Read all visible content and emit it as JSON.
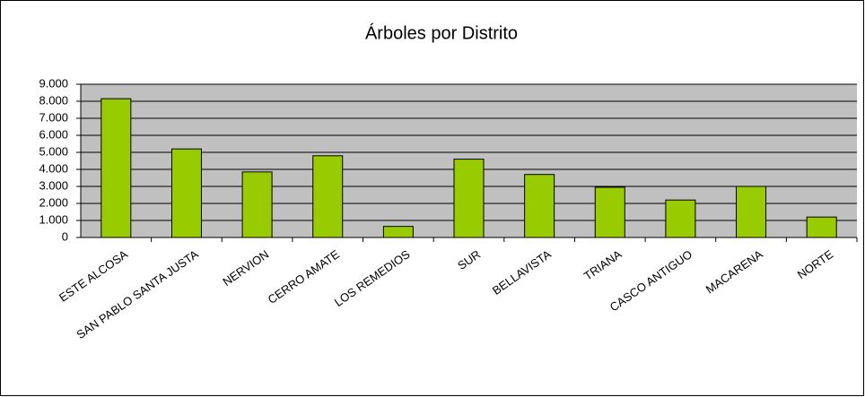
{
  "chart_data": {
    "type": "bar",
    "title": "Árboles por Distrito",
    "categories": [
      "ESTE ALCOSA",
      "SAN PABLO SANTA JUSTA",
      "NERVION",
      "CERRO AMATE",
      "LOS REMEDIOS",
      "SUR",
      "BELLAVISTA",
      "TRIANA",
      "CASCO ANTIGUO",
      "MACARENA",
      "NORTE"
    ],
    "values": [
      8150,
      5200,
      3850,
      4800,
      650,
      4600,
      3700,
      2950,
      2200,
      3000,
      1200
    ],
    "color": "#99cc00",
    "ylim": [
      0,
      9000
    ],
    "yticks": [
      0,
      {
        "value": 1000,
        "label": "1.000"
      },
      {
        "value": 2000,
        "label": "2.000"
      },
      {
        "value": 3000,
        "label": "3.000"
      },
      {
        "value": 4000,
        "label": "4.000"
      },
      {
        "value": 5000,
        "label": "5.000"
      },
      {
        "value": 6000,
        "label": "6.000"
      },
      {
        "value": 7000,
        "label": "7.000"
      },
      {
        "value": 8000,
        "label": "8.000"
      },
      {
        "value": 9000,
        "label": "9.000"
      }
    ],
    "grid": true
  }
}
